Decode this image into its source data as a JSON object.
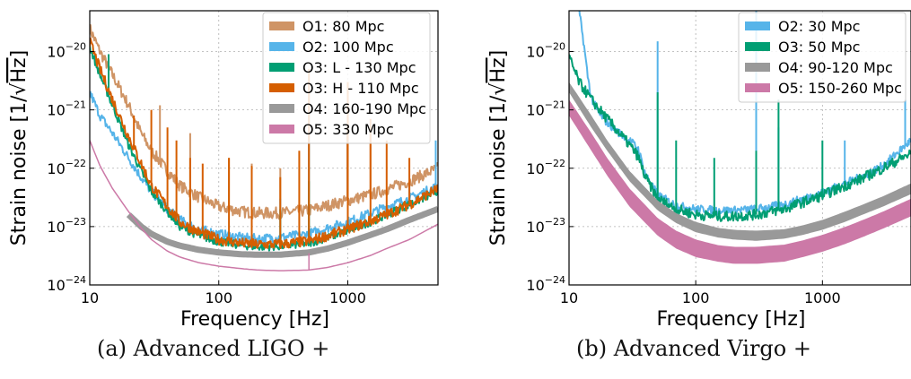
{
  "chart_data": [
    {
      "type": "line",
      "caption": "(a) Advanced LIGO +",
      "xlabel": "Frequency [Hz]",
      "ylabel_main": "Strain noise [1/",
      "ylabel_sqrt": "Hz",
      "ylabel_close": "]",
      "xscale": "log",
      "yscale": "log",
      "xlim": [
        10,
        5000
      ],
      "ylim": [
        1e-24,
        5e-20
      ],
      "xticks": [
        {
          "value": 10,
          "label": "10"
        },
        {
          "value": 100,
          "label": "100"
        },
        {
          "value": 1000,
          "label": "1000"
        }
      ],
      "yticks": [
        {
          "value": 1e-24,
          "exp": "−24"
        },
        {
          "value": 1e-23,
          "exp": "−23"
        },
        {
          "value": 1e-22,
          "exp": "−22"
        },
        {
          "value": 1e-21,
          "exp": "−21"
        },
        {
          "value": 1e-20,
          "exp": "−20"
        }
      ],
      "grid": true,
      "legend_position": "top-right",
      "series": [
        {
          "name": "O1: 80 Mpc",
          "color": "#cf9465",
          "width": 2,
          "noise": 0.1,
          "x": [
            10,
            12,
            15,
            20,
            25,
            30,
            40,
            50,
            70,
            100,
            150,
            200,
            300,
            500,
            700,
            1000,
            1500,
            2000,
            3000,
            5000
          ],
          "y": [
            2.5e-20,
            1e-20,
            4e-21,
            1.2e-21,
            4e-22,
            2e-22,
            9e-23,
            5e-23,
            3.2e-23,
            2.2e-23,
            1.8e-23,
            1.7e-23,
            1.7e-23,
            1.9e-23,
            2.3e-23,
            2.8e-23,
            3.5e-23,
            4.3e-23,
            6e-23,
            1e-22
          ],
          "spikes": [
            [
              35,
              1.2e-21
            ],
            [
              60,
              4e-22
            ],
            [
              120,
              1.5e-22
            ],
            [
              180,
              1.2e-22
            ],
            [
              300,
              1e-22
            ],
            [
              500,
              3e-21
            ],
            [
              990,
              5e-22
            ],
            [
              1500,
              4e-22
            ]
          ]
        },
        {
          "name": "O2: 100 Mpc",
          "color": "#56b4e9",
          "width": 2,
          "noise": 0.08,
          "x": [
            10,
            12,
            15,
            20,
            25,
            30,
            40,
            50,
            70,
            100,
            150,
            200,
            300,
            500,
            700,
            1000,
            1500,
            2000,
            3000,
            5000
          ],
          "y": [
            2e-21,
            8e-22,
            4e-22,
            1.5e-22,
            7e-23,
            4e-23,
            2e-23,
            1.3e-23,
            9e-24,
            7.5e-24,
            6.5e-24,
            6.2e-24,
            6.5e-24,
            7.5e-24,
            9.5e-24,
            1.2e-23,
            1.7e-23,
            2.2e-23,
            3e-23,
            5e-23
          ],
          "spikes": [
            [
              300,
              3e-23
            ],
            [
              500,
              1e-21
            ],
            [
              3000,
              5e-23
            ],
            [
              4800,
              3e-22
            ]
          ]
        },
        {
          "name": "O3: L - 130 Mpc",
          "color": "#009e73",
          "width": 2,
          "noise": 0.07,
          "x": [
            10,
            12,
            15,
            20,
            25,
            30,
            40,
            50,
            70,
            100,
            150,
            200,
            300,
            500,
            700,
            1000,
            1500,
            2000,
            3000,
            5000
          ],
          "y": [
            1.2e-20,
            4e-21,
            1.2e-21,
            2.5e-22,
            9e-23,
            4e-23,
            1.8e-23,
            1e-23,
            7e-24,
            5.5e-24,
            4.8e-24,
            4.5e-24,
            4.6e-24,
            5.2e-24,
            6.5e-24,
            8.5e-24,
            1.2e-23,
            1.6e-23,
            2.4e-23,
            4e-23
          ],
          "spikes": [
            [
              14,
              9e-21
            ],
            [
              60,
              3e-23
            ],
            [
              300,
              2e-23
            ],
            [
              500,
              6e-23
            ],
            [
              1000,
              6e-23
            ]
          ]
        },
        {
          "name": "O3: H - 110 Mpc",
          "color": "#d55e00",
          "width": 2,
          "noise": 0.09,
          "x": [
            10,
            12,
            15,
            20,
            25,
            30,
            40,
            50,
            70,
            100,
            150,
            200,
            300,
            500,
            700,
            1000,
            1500,
            2000,
            3000,
            5000
          ],
          "y": [
            1.5e-20,
            5e-21,
            1.5e-21,
            3.5e-22,
            1.2e-22,
            5e-23,
            2.2e-23,
            1.2e-23,
            8e-24,
            6e-24,
            5.2e-24,
            4.9e-24,
            5e-24,
            5.6e-24,
            7e-24,
            9e-24,
            1.25e-23,
            1.6e-23,
            2.4e-23,
            4.5e-23
          ],
          "spikes": [
            [
              22,
              8e-22
            ],
            [
              30,
              1e-21
            ],
            [
              40,
              5e-22
            ],
            [
              47,
              3e-22
            ],
            [
              60,
              1.5e-22
            ],
            [
              75,
              1.2e-22
            ],
            [
              120,
              1.5e-22
            ],
            [
              180,
              1.1e-22
            ],
            [
              300,
              7e-23
            ],
            [
              420,
              2e-22
            ],
            [
              500,
              5e-21
            ],
            [
              1000,
              3e-21
            ],
            [
              1500,
              7e-22
            ],
            [
              2000,
              3e-22
            ],
            [
              3000,
              1.5e-22
            ]
          ]
        },
        {
          "name": "O4: 160-190 Mpc",
          "color": "#999999",
          "width": 7,
          "noise": 0,
          "x": [
            20,
            25,
            30,
            40,
            50,
            70,
            100,
            150,
            200,
            300,
            500,
            700,
            1000,
            1500,
            2000,
            3000,
            5000
          ],
          "y": [
            1.6e-23,
            1e-23,
            7.5e-24,
            5.5e-24,
            4.7e-24,
            4e-24,
            3.6e-24,
            3.35e-24,
            3.3e-24,
            3.3e-24,
            3.6e-24,
            4.2e-24,
            5.3e-24,
            7.2e-24,
            9e-24,
            1.3e-23,
            2e-23
          ],
          "spikes": []
        },
        {
          "name": "O5: 330 Mpc",
          "color": "#cc79a7",
          "width": 1.5,
          "noise": 0,
          "x": [
            10,
            12,
            15,
            20,
            25,
            30,
            40,
            50,
            70,
            100,
            150,
            200,
            300,
            500,
            700,
            1000,
            1500,
            2000,
            3000,
            5000
          ],
          "y": [
            3e-22,
            1.1e-22,
            4.5e-23,
            1.8e-23,
            9.5e-24,
            6e-24,
            3.8e-24,
            3e-24,
            2.4e-24,
            2.1e-24,
            1.9e-24,
            1.8e-24,
            1.75e-24,
            1.8e-24,
            2e-24,
            2.4e-24,
            3.2e-24,
            4.2e-24,
            6e-24,
            1.1e-23
          ],
          "spikes": [
            [
              500,
              3.5e-24
            ]
          ]
        }
      ]
    },
    {
      "type": "line",
      "caption": "(b) Advanced Virgo +",
      "xlabel": "Frequency [Hz]",
      "ylabel_main": "Strain noise [1/",
      "ylabel_sqrt": "Hz",
      "ylabel_close": "]",
      "xscale": "log",
      "yscale": "log",
      "xlim": [
        10,
        5000
      ],
      "ylim": [
        1e-24,
        5e-20
      ],
      "xticks": [
        {
          "value": 10,
          "label": "10"
        },
        {
          "value": 100,
          "label": "100"
        },
        {
          "value": 1000,
          "label": "1000"
        }
      ],
      "yticks": [
        {
          "value": 1e-24,
          "exp": "−24"
        },
        {
          "value": 1e-23,
          "exp": "−23"
        },
        {
          "value": 1e-22,
          "exp": "−22"
        },
        {
          "value": 1e-21,
          "exp": "−21"
        },
        {
          "value": 1e-20,
          "exp": "−20"
        }
      ],
      "grid": true,
      "legend_position": "top-right",
      "series": [
        {
          "name": "O2: 30 Mpc",
          "color": "#56b4e9",
          "width": 2,
          "noise": 0.07,
          "x": [
            12,
            13,
            14,
            15,
            17,
            20,
            25,
            30,
            35,
            40,
            50,
            70,
            100,
            150,
            200,
            300,
            500,
            700,
            1000,
            1500,
            2000,
            3000,
            5000
          ],
          "y": [
            5e-20,
            1.5e-20,
            4e-21,
            1.6e-21,
            9e-22,
            6e-22,
            4e-22,
            3e-22,
            2.2e-22,
            8e-23,
            3.5e-23,
            2.3e-23,
            2e-23,
            1.9e-23,
            1.9e-23,
            2e-23,
            2.4e-23,
            3e-23,
            3.8e-23,
            5.5e-23,
            7e-23,
            1.1e-22,
            3e-22
          ],
          "spikes": [
            [
              50,
              1.5e-20
            ],
            [
              300,
              5e-20
            ],
            [
              450,
              5e-22
            ],
            [
              1500,
              3e-22
            ],
            [
              4500,
              1.5e-21
            ]
          ]
        },
        {
          "name": "O3: 50 Mpc",
          "color": "#009e73",
          "width": 2,
          "noise": 0.09,
          "x": [
            10,
            12,
            15,
            20,
            25,
            30,
            35,
            40,
            50,
            70,
            100,
            150,
            200,
            300,
            500,
            700,
            1000,
            1500,
            2000,
            3000,
            5000
          ],
          "y": [
            8e-21,
            3e-21,
            1.5e-21,
            7e-22,
            4e-22,
            2.5e-22,
            1.6e-22,
            7e-23,
            3e-23,
            2e-23,
            1.6e-23,
            1.5e-23,
            1.5e-23,
            1.6e-23,
            2e-23,
            2.6e-23,
            3.4e-23,
            5e-23,
            6.5e-23,
            1e-22,
            1.8e-22
          ],
          "spikes": [
            [
              50,
              2e-21
            ],
            [
              70,
              3e-22
            ],
            [
              140,
              1.5e-22
            ],
            [
              300,
              2e-22
            ],
            [
              450,
              1.5e-21
            ],
            [
              1000,
              3e-22
            ]
          ]
        },
        {
          "name": "O4: 90-120 Mpc",
          "band": true,
          "color": "#999999",
          "x": [
            10,
            15,
            20,
            30,
            50,
            70,
            100,
            150,
            200,
            300,
            500,
            700,
            1000,
            1500,
            2000,
            3000,
            5000
          ],
          "upper": [
            3e-21,
            8e-22,
            3e-22,
            9e-23,
            2.8e-23,
            1.7e-23,
            1.2e-23,
            9.5e-24,
            8.8e-24,
            8.5e-24,
            9e-24,
            1.05e-23,
            1.3e-23,
            1.8e-23,
            2.3e-23,
            3.3e-23,
            5.5e-23
          ],
          "lower": [
            2e-21,
            5e-22,
            2e-22,
            6e-23,
            1.9e-23,
            1.15e-23,
            8e-24,
            6.5e-24,
            6e-24,
            5.7e-24,
            6.2e-24,
            7.2e-24,
            8.8e-24,
            1.2e-23,
            1.55e-23,
            2.2e-23,
            3.6e-23
          ]
        },
        {
          "name": "O5: 150-260 Mpc",
          "band": true,
          "color": "#cc79a7",
          "x": [
            10,
            15,
            20,
            30,
            50,
            70,
            100,
            150,
            200,
            300,
            500,
            700,
            1000,
            1500,
            2000,
            3000,
            5000
          ],
          "upper": [
            1.5e-21,
            4e-22,
            1.5e-22,
            4.5e-23,
            1.4e-23,
            8.5e-24,
            6e-24,
            4.8e-24,
            4.5e-24,
            4.5e-24,
            4.9e-24,
            5.8e-24,
            7.2e-24,
            9.8e-24,
            1.25e-23,
            1.8e-23,
            3e-23
          ],
          "lower": [
            8e-22,
            2e-22,
            7.5e-23,
            2.2e-23,
            7e-24,
            4.2e-24,
            3e-24,
            2.5e-24,
            2.3e-24,
            2.3e-24,
            2.5e-24,
            3e-24,
            3.7e-24,
            5e-24,
            6.4e-24,
            9.2e-24,
            1.5e-23
          ]
        }
      ]
    }
  ]
}
